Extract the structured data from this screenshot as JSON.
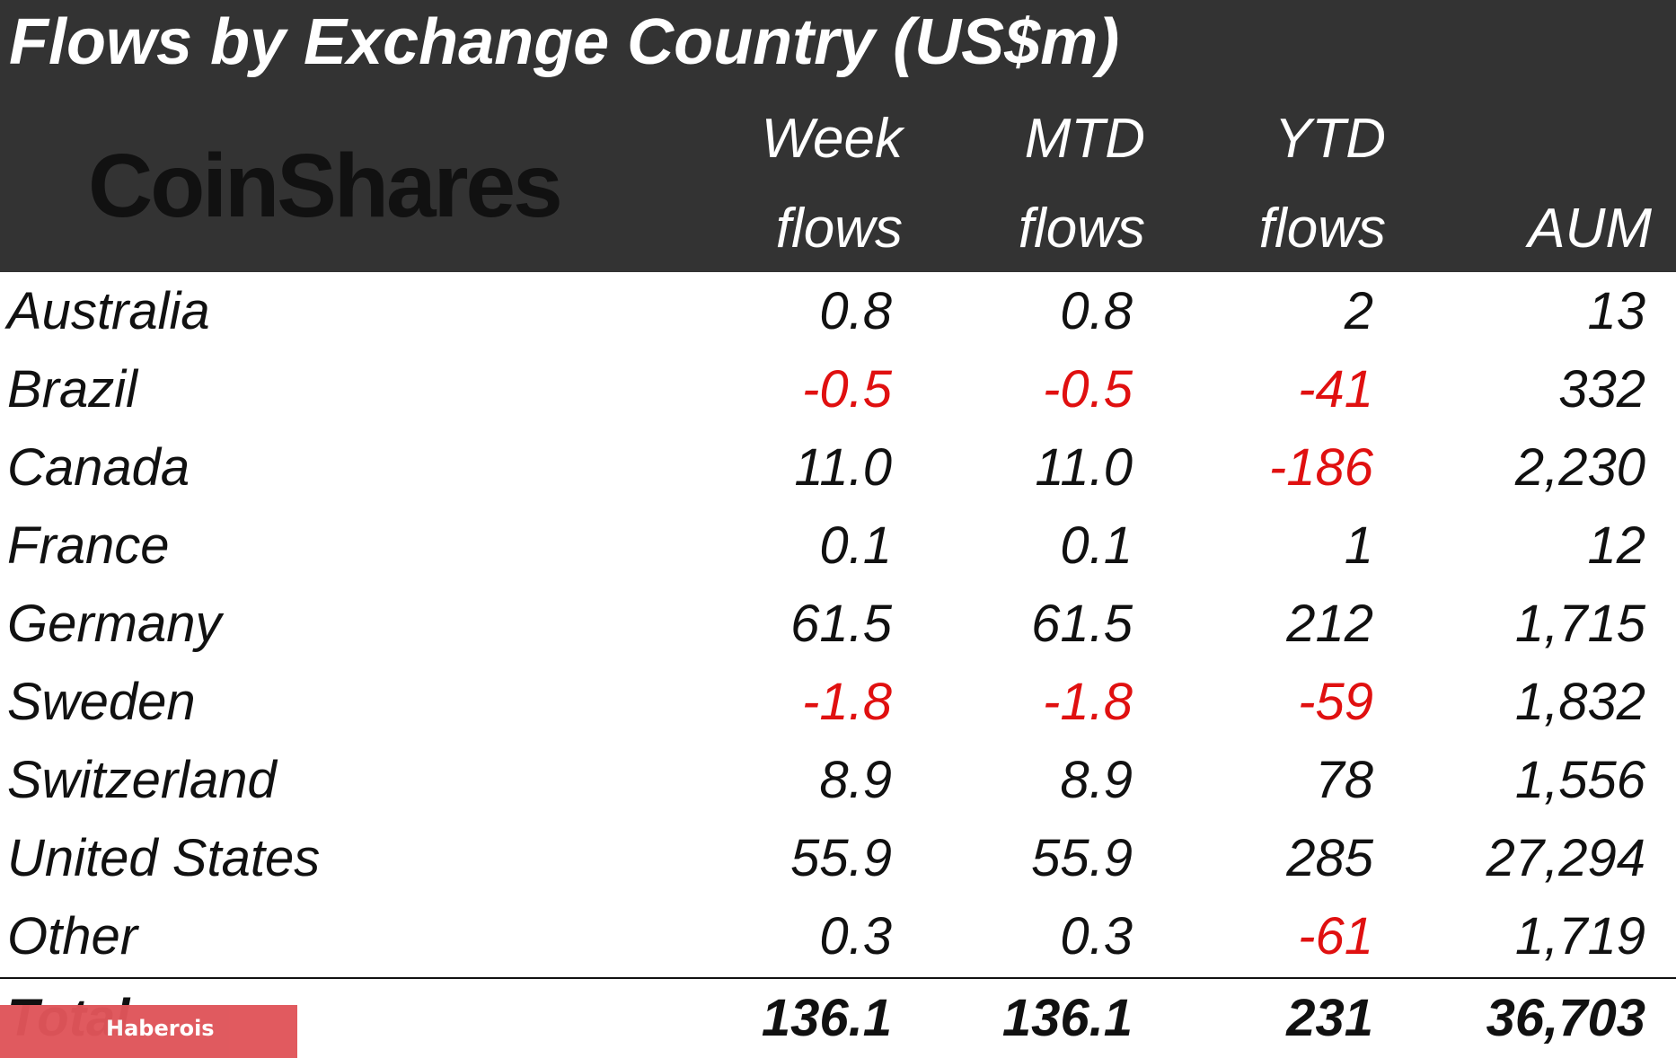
{
  "title": "Flows by Exchange Country (US$m)",
  "brand": "CoinShares",
  "columns": [
    {
      "line1": "Week",
      "line2": "flows"
    },
    {
      "line1": "MTD",
      "line2": "flows"
    },
    {
      "line1": "YTD",
      "line2": "flows"
    },
    {
      "line1": "",
      "line2": "AUM"
    }
  ],
  "rows": [
    {
      "country": "Australia",
      "week": "0.8",
      "mtd": "0.8",
      "ytd": "2",
      "aum": "13"
    },
    {
      "country": "Brazil",
      "week": "-0.5",
      "mtd": "-0.5",
      "ytd": "-41",
      "aum": "332"
    },
    {
      "country": "Canada",
      "week": "11.0",
      "mtd": "11.0",
      "ytd": "-186",
      "aum": "2,230"
    },
    {
      "country": "France",
      "week": "0.1",
      "mtd": "0.1",
      "ytd": "1",
      "aum": "12"
    },
    {
      "country": "Germany",
      "week": "61.5",
      "mtd": "61.5",
      "ytd": "212",
      "aum": "1,715"
    },
    {
      "country": "Sweden",
      "week": "-1.8",
      "mtd": "-1.8",
      "ytd": "-59",
      "aum": "1,832"
    },
    {
      "country": "Switzerland",
      "week": "8.9",
      "mtd": "8.9",
      "ytd": "78",
      "aum": "1,556"
    },
    {
      "country": "United States",
      "week": "55.9",
      "mtd": "55.9",
      "ytd": "285",
      "aum": "27,294"
    },
    {
      "country": "Other",
      "week": "0.3",
      "mtd": "0.3",
      "ytd": "-61",
      "aum": "1,719"
    }
  ],
  "total": {
    "country": "Total",
    "week": "136.1",
    "mtd": "136.1",
    "ytd": "231",
    "aum": "36,703"
  },
  "watermark": "Haberois",
  "colors": {
    "header_bg": "#333333",
    "header_text": "#ffffff",
    "negative": "#e01010",
    "positive": "#111111",
    "watermark_bg": "#e0555a"
  },
  "chart_data": {
    "type": "table",
    "title": "Flows by Exchange Country (US$m)",
    "columns": [
      "Week flows",
      "MTD flows",
      "YTD flows",
      "AUM"
    ],
    "categories": [
      "Australia",
      "Brazil",
      "Canada",
      "France",
      "Germany",
      "Sweden",
      "Switzerland",
      "United States",
      "Other",
      "Total"
    ],
    "series": [
      {
        "name": "Week flows",
        "values": [
          0.8,
          -0.5,
          11.0,
          0.1,
          61.5,
          -1.8,
          8.9,
          55.9,
          0.3,
          136.1
        ]
      },
      {
        "name": "MTD flows",
        "values": [
          0.8,
          -0.5,
          11.0,
          0.1,
          61.5,
          -1.8,
          8.9,
          55.9,
          0.3,
          136.1
        ]
      },
      {
        "name": "YTD flows",
        "values": [
          2,
          -41,
          -186,
          1,
          212,
          -59,
          78,
          285,
          -61,
          231
        ]
      },
      {
        "name": "AUM",
        "values": [
          13,
          332,
          2230,
          12,
          1715,
          1832,
          1556,
          27294,
          1719,
          36703
        ]
      }
    ]
  }
}
